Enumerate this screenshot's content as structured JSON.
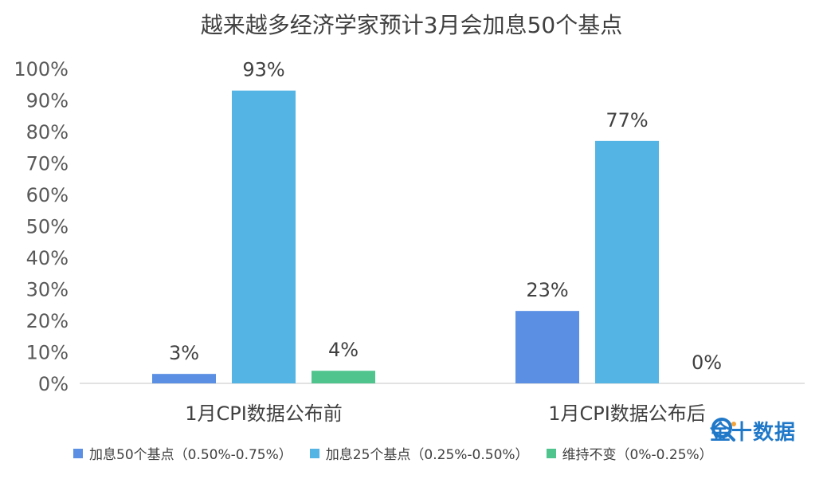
{
  "title": "越来越多经济学家预计3月会加息50个基点",
  "chart_data": {
    "type": "bar",
    "categories": [
      "1月CPI数据公布前",
      "1月CPI数据公布后"
    ],
    "series": [
      {
        "name": "加息50个基点（0.50%-0.75%）",
        "color": "#5b8fe3",
        "values": [
          3,
          23
        ],
        "labels": [
          "3%",
          "23%"
        ]
      },
      {
        "name": "加息25个基点（0.25%-0.50%）",
        "color": "#54b4e4",
        "values": [
          93,
          77
        ],
        "labels": [
          "93%",
          "77%"
        ]
      },
      {
        "name": "维持不变（0%-0.25%）",
        "color": "#4fc58d",
        "values": [
          4,
          0
        ],
        "labels": [
          "4%",
          "0%"
        ]
      }
    ],
    "y_ticks": [
      "0%",
      "10%",
      "20%",
      "30%",
      "40%",
      "50%",
      "60%",
      "70%",
      "80%",
      "90%",
      "100%"
    ],
    "ylim": [
      0,
      100
    ],
    "grid": false,
    "legend_position": "bottom"
  },
  "watermark": {
    "text": "金十数据"
  }
}
